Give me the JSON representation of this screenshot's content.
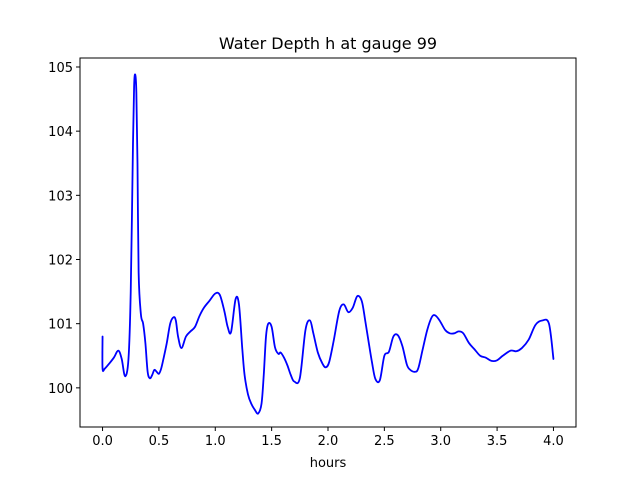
{
  "chart_data": {
    "type": "line",
    "title": "Water Depth h at gauge 99",
    "xlabel": "hours",
    "ylabel": "",
    "xlim": [
      -0.2,
      4.2
    ],
    "ylim": [
      99.39,
      105.14
    ],
    "xticks": [
      0.0,
      0.5,
      1.0,
      1.5,
      2.0,
      2.5,
      3.0,
      3.5,
      4.0
    ],
    "xtick_labels": [
      "0.0",
      "0.5",
      "1.0",
      "1.5",
      "2.0",
      "2.5",
      "3.0",
      "3.5",
      "4.0"
    ],
    "yticks": [
      100,
      101,
      102,
      103,
      104,
      105
    ],
    "ytick_labels": [
      "100",
      "101",
      "102",
      "103",
      "104",
      "105"
    ],
    "grid": false,
    "legend": "none",
    "colors": {
      "line": "#0000ff",
      "axes": "#000000",
      "background": "#ffffff"
    },
    "series": [
      {
        "color": "#0000ff",
        "x": [
          0.0,
          0.0,
          0.02,
          0.06,
          0.1,
          0.14,
          0.17,
          0.2,
          0.23,
          0.25,
          0.27,
          0.28,
          0.29,
          0.3,
          0.31,
          0.32,
          0.34,
          0.36,
          0.38,
          0.4,
          0.42,
          0.44,
          0.46,
          0.48,
          0.5,
          0.52,
          0.54,
          0.57,
          0.6,
          0.63,
          0.65,
          0.67,
          0.7,
          0.74,
          0.78,
          0.82,
          0.86,
          0.9,
          0.95,
          1.0,
          1.04,
          1.08,
          1.11,
          1.14,
          1.18,
          1.21,
          1.24,
          1.26,
          1.29,
          1.32,
          1.35,
          1.38,
          1.41,
          1.43,
          1.45,
          1.47,
          1.5,
          1.53,
          1.56,
          1.58,
          1.61,
          1.64,
          1.67,
          1.7,
          1.75,
          1.8,
          1.84,
          1.87,
          1.91,
          1.95,
          1.98,
          2.01,
          2.05,
          2.1,
          2.14,
          2.18,
          2.22,
          2.26,
          2.3,
          2.33,
          2.36,
          2.39,
          2.42,
          2.46,
          2.5,
          2.54,
          2.58,
          2.62,
          2.66,
          2.7,
          2.73,
          2.77,
          2.8,
          2.84,
          2.88,
          2.92,
          2.95,
          2.99,
          3.04,
          3.08,
          3.12,
          3.16,
          3.2,
          3.25,
          3.3,
          3.35,
          3.4,
          3.45,
          3.5,
          3.55,
          3.62,
          3.67,
          3.72,
          3.78,
          3.84,
          3.9,
          3.96,
          4.0
        ],
        "values": [
          100.8,
          100.3,
          100.3,
          100.38,
          100.47,
          100.58,
          100.45,
          100.18,
          100.45,
          101.5,
          103.8,
          104.7,
          104.88,
          104.6,
          103.5,
          101.8,
          101.15,
          101.0,
          100.7,
          100.25,
          100.15,
          100.2,
          100.28,
          100.25,
          100.22,
          100.3,
          100.45,
          100.7,
          101.0,
          101.1,
          101.05,
          100.8,
          100.62,
          100.8,
          100.88,
          100.95,
          101.12,
          101.25,
          101.36,
          101.47,
          101.45,
          101.2,
          100.95,
          100.87,
          101.38,
          101.3,
          100.6,
          100.2,
          99.9,
          99.75,
          99.66,
          99.6,
          99.75,
          100.2,
          100.8,
          101.0,
          100.95,
          100.63,
          100.53,
          100.55,
          100.47,
          100.35,
          100.2,
          100.1,
          100.15,
          100.9,
          101.05,
          100.85,
          100.55,
          100.38,
          100.32,
          100.4,
          100.73,
          101.2,
          101.3,
          101.18,
          101.25,
          101.43,
          101.35,
          101.05,
          100.72,
          100.4,
          100.14,
          100.12,
          100.5,
          100.56,
          100.8,
          100.82,
          100.65,
          100.36,
          100.28,
          100.25,
          100.3,
          100.6,
          100.9,
          101.1,
          101.13,
          101.05,
          100.9,
          100.85,
          100.85,
          100.88,
          100.85,
          100.7,
          100.6,
          100.5,
          100.47,
          100.42,
          100.43,
          100.5,
          100.58,
          100.57,
          100.62,
          100.75,
          100.98,
          101.05,
          101.0,
          100.45
        ]
      }
    ]
  }
}
